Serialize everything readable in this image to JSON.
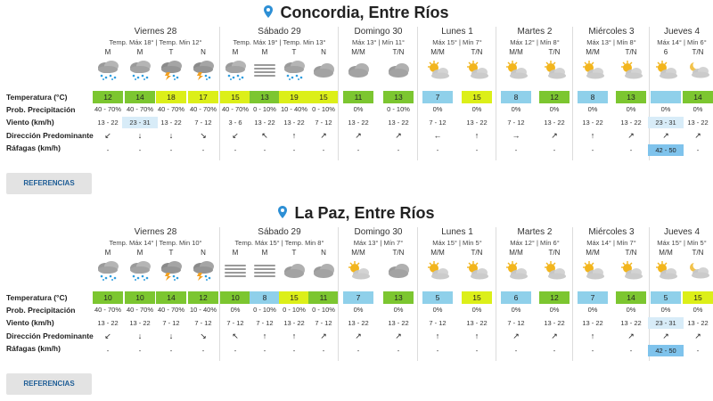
{
  "row_labels": {
    "temperature": "Temperatura (°C)",
    "precipitation": "Prob. Precipitación",
    "wind": "Viento (km/h)",
    "direction": "Dirección Predominante",
    "gusts": "Ráfagas (km/h)"
  },
  "references_label": "REFERENCIAS",
  "colors": {
    "blue_temp": "#8fd0ea",
    "green_temp": "#7cc630",
    "yellow_temp": "#dcef19",
    "wind_highlight": "#d8ecf8",
    "gust_highlight": "#7fc3ec"
  },
  "locations": [
    {
      "title": "Concordia, Entre Ríos",
      "days": [
        {
          "name": "Viernes 28",
          "sub": "Temp. Máx 18° | Temp. Min 12°",
          "cols": [
            {
              "label": "M",
              "icon": "rain-cloud-icon",
              "temp": "12",
              "color": "#7cc630",
              "prob": "40 - 70%",
              "wind": "13 - 22",
              "dir": "↙",
              "gust": "-"
            },
            {
              "label": "M",
              "icon": "rain-cloud-icon",
              "temp": "14",
              "color": "#7cc630",
              "prob": "40 - 70%",
              "wind": "23 - 31",
              "wind_hl": true,
              "dir": "↓",
              "gust": "-"
            },
            {
              "label": "T",
              "icon": "storm-cloud-icon",
              "temp": "18",
              "color": "#dcef19",
              "prob": "40 - 70%",
              "wind": "13 - 22",
              "dir": "↓",
              "gust": "-"
            },
            {
              "label": "N",
              "icon": "storm-cloud-icon",
              "temp": "17",
              "color": "#dcef19",
              "prob": "40 - 70%",
              "wind": "7 - 12",
              "dir": "↘",
              "gust": "-"
            }
          ]
        },
        {
          "name": "Sábado 29",
          "sub": "Temp. Máx 19° | Temp. Min 13°",
          "cols": [
            {
              "label": "M",
              "icon": "rain-cloud-icon",
              "temp": "15",
              "color": "#dcef19",
              "prob": "40 - 70%",
              "wind": "3 - 6",
              "dir": "↙",
              "gust": "-"
            },
            {
              "label": "M",
              "icon": "fog-icon",
              "temp": "13",
              "color": "#7cc630",
              "prob": "0 - 10%",
              "wind": "13 - 22",
              "dir": "↖",
              "gust": "-"
            },
            {
              "label": "T",
              "icon": "rain-cloud-icon",
              "temp": "19",
              "color": "#dcef19",
              "prob": "10 - 40%",
              "wind": "13 - 22",
              "dir": "↑",
              "gust": "-"
            },
            {
              "label": "N",
              "icon": "cloud-icon",
              "temp": "15",
              "color": "#dcef19",
              "prob": "0 - 10%",
              "wind": "7 - 12",
              "dir": "↗",
              "gust": "-"
            }
          ]
        },
        {
          "name": "Domingo 30",
          "sub": "Máx 13° | Mín 11°",
          "cols": [
            {
              "label": "M/M",
              "icon": "cloud-icon",
              "temp": "11",
              "color": "#7cc630",
              "prob": "0%",
              "wind": "13 - 22",
              "dir": "↗",
              "gust": "-"
            },
            {
              "label": "T/N",
              "icon": "cloud-icon",
              "temp": "13",
              "color": "#7cc630",
              "prob": "0 - 10%",
              "wind": "13 - 22",
              "dir": "↗",
              "gust": "-"
            }
          ]
        },
        {
          "name": "Lunes 1",
          "sub": "Máx 15° | Mín 7°",
          "cols": [
            {
              "label": "M/M",
              "icon": "partly-cloudy-icon",
              "temp": "7",
              "color": "#8fd0ea",
              "prob": "0%",
              "wind": "7 - 12",
              "dir": "←",
              "gust": "-"
            },
            {
              "label": "T/N",
              "icon": "partly-cloudy-icon",
              "temp": "15",
              "color": "#dcef19",
              "prob": "0%",
              "wind": "13 - 22",
              "dir": "↑",
              "gust": "-"
            }
          ]
        },
        {
          "name": "Martes 2",
          "sub": "Máx 12° | Mín 8°",
          "cols": [
            {
              "label": "M/M",
              "icon": "partly-cloudy-icon",
              "temp": "8",
              "color": "#8fd0ea",
              "prob": "0%",
              "wind": "7 - 12",
              "dir": "→",
              "gust": "-"
            },
            {
              "label": "T/N",
              "icon": "partly-cloudy-icon",
              "temp": "12",
              "color": "#7cc630",
              "prob": "0%",
              "wind": "13 - 22",
              "dir": "↗",
              "gust": "-"
            }
          ]
        },
        {
          "name": "Miércoles 3",
          "sub": "Máx 13° | Mín 8°",
          "cols": [
            {
              "label": "M/M",
              "icon": "partly-cloudy-icon",
              "temp": "8",
              "color": "#8fd0ea",
              "prob": "0%",
              "wind": "13 - 22",
              "dir": "↑",
              "gust": "-"
            },
            {
              "label": "T/N",
              "icon": "partly-cloudy-icon",
              "temp": "13",
              "color": "#7cc630",
              "prob": "0%",
              "wind": "13 - 22",
              "dir": "↗",
              "gust": "-"
            }
          ]
        },
        {
          "name": "Jueves 4",
          "sub": "Máx 14° | Mín 6°",
          "cols": [
            {
              "label": "6",
              "icon": "partly-cloudy-icon",
              "temp": "",
              "color": "#8fd0ea",
              "prob": "0%",
              "wind": "23 - 31",
              "wind_hl": true,
              "dir": "↗",
              "gust": "42 - 50",
              "gust_hl": true
            },
            {
              "label": "T/N",
              "icon": "partly-cloudy-night-icon",
              "temp": "14",
              "color": "#7cc630",
              "prob": "0%",
              "wind": "13 - 22",
              "dir": "↗",
              "gust": "-"
            }
          ]
        }
      ]
    },
    {
      "title": "La Paz, Entre Ríos",
      "days": [
        {
          "name": "Viernes 28",
          "sub": "Temp. Máx 14° | Temp. Min 10°",
          "cols": [
            {
              "label": "M",
              "icon": "rain-cloud-icon",
              "temp": "10",
              "color": "#7cc630",
              "prob": "40 - 70%",
              "wind": "13 - 22",
              "dir": "↙",
              "gust": "-"
            },
            {
              "label": "M",
              "icon": "rain-cloud-icon",
              "temp": "10",
              "color": "#7cc630",
              "prob": "40 - 70%",
              "wind": "13 - 22",
              "dir": "↓",
              "gust": "-"
            },
            {
              "label": "T",
              "icon": "storm-cloud-icon",
              "temp": "14",
              "color": "#7cc630",
              "prob": "40 - 70%",
              "wind": "7 - 12",
              "dir": "↓",
              "gust": "-"
            },
            {
              "label": "N",
              "icon": "storm-cloud-icon",
              "temp": "12",
              "color": "#7cc630",
              "prob": "10 - 40%",
              "wind": "7 - 12",
              "dir": "↘",
              "gust": "-"
            }
          ]
        },
        {
          "name": "Sábado 29",
          "sub": "Temp. Máx 15° | Temp. Min 8°",
          "cols": [
            {
              "label": "M",
              "icon": "fog-icon",
              "temp": "10",
              "color": "#7cc630",
              "prob": "0%",
              "wind": "7 - 12",
              "dir": "↖",
              "gust": "-"
            },
            {
              "label": "M",
              "icon": "fog-icon",
              "temp": "8",
              "color": "#8fd0ea",
              "prob": "0 - 10%",
              "wind": "7 - 12",
              "dir": "↑",
              "gust": "-"
            },
            {
              "label": "T",
              "icon": "cloud-icon",
              "temp": "15",
              "color": "#dcef19",
              "prob": "0 - 10%",
              "wind": "13 - 22",
              "dir": "↑",
              "gust": "-"
            },
            {
              "label": "N",
              "icon": "cloud-icon",
              "temp": "11",
              "color": "#7cc630",
              "prob": "0 - 10%",
              "wind": "7 - 12",
              "dir": "↗",
              "gust": "-"
            }
          ]
        },
        {
          "name": "Domingo 30",
          "sub": "Máx 13° | Mín 7°",
          "cols": [
            {
              "label": "M/M",
              "icon": "partly-cloudy-icon",
              "temp": "7",
              "color": "#8fd0ea",
              "prob": "0%",
              "wind": "13 - 22",
              "dir": "↗",
              "gust": "-"
            },
            {
              "label": "T/N",
              "icon": "cloud-icon",
              "temp": "13",
              "color": "#7cc630",
              "prob": "0%",
              "wind": "13 - 22",
              "dir": "↗",
              "gust": "-"
            }
          ]
        },
        {
          "name": "Lunes 1",
          "sub": "Máx 15° | Mín 5°",
          "cols": [
            {
              "label": "M/M",
              "icon": "partly-cloudy-icon",
              "temp": "5",
              "color": "#8fd0ea",
              "prob": "0%",
              "wind": "7 - 12",
              "dir": "↑",
              "gust": "-"
            },
            {
              "label": "T/N",
              "icon": "partly-cloudy-icon",
              "temp": "15",
              "color": "#dcef19",
              "prob": "0%",
              "wind": "13 - 22",
              "dir": "↑",
              "gust": "-"
            }
          ]
        },
        {
          "name": "Martes 2",
          "sub": "Máx 12° | Mín 6°",
          "cols": [
            {
              "label": "M/M",
              "icon": "partly-cloudy-icon",
              "temp": "6",
              "color": "#8fd0ea",
              "prob": "0%",
              "wind": "7 - 12",
              "dir": "↗",
              "gust": "-"
            },
            {
              "label": "T/N",
              "icon": "partly-cloudy-icon",
              "temp": "12",
              "color": "#7cc630",
              "prob": "0%",
              "wind": "13 - 22",
              "dir": "↗",
              "gust": "-"
            }
          ]
        },
        {
          "name": "Miércoles 3",
          "sub": "Máx 14° | Mín 7°",
          "cols": [
            {
              "label": "M/M",
              "icon": "partly-cloudy-icon",
              "temp": "7",
              "color": "#8fd0ea",
              "prob": "0%",
              "wind": "13 - 22",
              "dir": "↑",
              "gust": "-"
            },
            {
              "label": "T/N",
              "icon": "partly-cloudy-icon",
              "temp": "14",
              "color": "#7cc630",
              "prob": "0%",
              "wind": "13 - 22",
              "dir": "↗",
              "gust": "-"
            }
          ]
        },
        {
          "name": "Jueves 4",
          "sub": "Máx 15° | Mín 5°",
          "cols": [
            {
              "label": "M/M",
              "icon": "partly-cloudy-icon",
              "temp": "5",
              "color": "#8fd0ea",
              "prob": "0%",
              "wind": "23 - 31",
              "wind_hl": true,
              "dir": "↗",
              "gust": "42 - 50",
              "gust_hl": true
            },
            {
              "label": "T/N",
              "icon": "partly-cloudy-night-icon",
              "temp": "15",
              "color": "#dcef19",
              "prob": "0%",
              "wind": "13 - 22",
              "dir": "↗",
              "gust": "-"
            }
          ]
        }
      ]
    }
  ]
}
